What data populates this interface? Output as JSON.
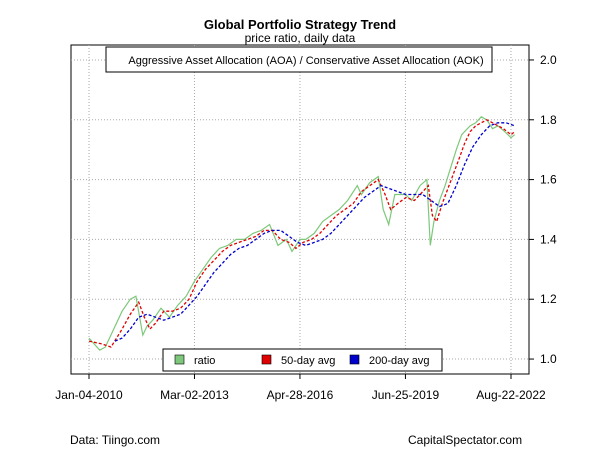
{
  "footer": {
    "source": "Data: Tiingo.com",
    "site": "CapitalSpectator.com"
  },
  "chart_data": {
    "type": "line",
    "title": "Global Portfolio Strategy Trend",
    "subtitle": "price ratio, daily data",
    "annotation": "Aggressive Asset Allocation (AOA) / Conservative Asset Allocation (AOK)",
    "xlabel": "",
    "ylabel": "",
    "x_ticks": [
      "Jan-04-2010",
      "Mar-02-2013",
      "Apr-28-2016",
      "Jun-25-2019",
      "Aug-22-2022"
    ],
    "y_ticks": [
      1.0,
      1.2,
      1.4,
      1.6,
      1.8,
      2.0
    ],
    "ylim": [
      0.95,
      2.05
    ],
    "grid": true,
    "legend_position": "bottom",
    "series": [
      {
        "name": "ratio",
        "color": "#7dc87a",
        "x": [
          "2010-01-04",
          "2010-05-01",
          "2010-07-01",
          "2010-10-01",
          "2011-01-01",
          "2011-04-01",
          "2011-06-01",
          "2011-08-15",
          "2011-10-01",
          "2011-12-01",
          "2012-03-01",
          "2012-06-01",
          "2012-09-01",
          "2012-12-01",
          "2013-03-01",
          "2013-06-01",
          "2013-09-01",
          "2013-12-01",
          "2014-03-01",
          "2014-06-01",
          "2014-09-01",
          "2014-12-01",
          "2015-03-01",
          "2015-06-01",
          "2015-09-01",
          "2015-12-01",
          "2016-02-01",
          "2016-04-28",
          "2016-07-01",
          "2016-10-01",
          "2017-01-01",
          "2017-04-01",
          "2017-07-01",
          "2017-10-01",
          "2018-01-15",
          "2018-03-01",
          "2018-06-01",
          "2018-09-01",
          "2018-10-25",
          "2018-12-24",
          "2019-03-01",
          "2019-06-25",
          "2019-09-01",
          "2019-12-01",
          "2020-02-15",
          "2020-03-23",
          "2020-05-01",
          "2020-07-01",
          "2020-09-01",
          "2020-11-01",
          "2021-01-01",
          "2021-03-01",
          "2021-06-01",
          "2021-08-01",
          "2021-10-01",
          "2021-12-01",
          "2022-02-01",
          "2022-04-01",
          "2022-06-15",
          "2022-08-22",
          "2022-10-01"
        ],
        "values": [
          1.07,
          1.03,
          1.04,
          1.1,
          1.16,
          1.2,
          1.21,
          1.08,
          1.11,
          1.13,
          1.17,
          1.14,
          1.18,
          1.21,
          1.26,
          1.3,
          1.34,
          1.37,
          1.38,
          1.4,
          1.4,
          1.42,
          1.43,
          1.45,
          1.38,
          1.4,
          1.36,
          1.4,
          1.4,
          1.42,
          1.46,
          1.48,
          1.5,
          1.53,
          1.58,
          1.55,
          1.59,
          1.61,
          1.5,
          1.45,
          1.55,
          1.55,
          1.53,
          1.58,
          1.6,
          1.38,
          1.46,
          1.53,
          1.58,
          1.64,
          1.7,
          1.75,
          1.78,
          1.79,
          1.81,
          1.8,
          1.77,
          1.78,
          1.76,
          1.74,
          1.75
        ]
      },
      {
        "name": "50-day avg",
        "color": "#e00000",
        "x": [
          "2010-01-04",
          "2010-06-01",
          "2010-09-01",
          "2011-01-01",
          "2011-04-01",
          "2011-07-01",
          "2011-09-01",
          "2011-11-01",
          "2012-01-01",
          "2012-04-01",
          "2012-07-01",
          "2012-10-01",
          "2013-01-01",
          "2013-04-01",
          "2013-07-01",
          "2013-10-01",
          "2014-01-01",
          "2014-04-01",
          "2014-07-01",
          "2014-10-01",
          "2015-01-01",
          "2015-04-01",
          "2015-07-01",
          "2015-10-01",
          "2016-01-01",
          "2016-03-15",
          "2016-06-01",
          "2016-09-01",
          "2016-12-01",
          "2017-03-01",
          "2017-06-01",
          "2017-09-01",
          "2017-12-01",
          "2018-03-01",
          "2018-06-01",
          "2018-09-01",
          "2018-11-15",
          "2019-01-15",
          "2019-04-01",
          "2019-07-01",
          "2019-10-01",
          "2020-01-01",
          "2020-03-01",
          "2020-04-15",
          "2020-06-01",
          "2020-08-01",
          "2020-10-01",
          "2020-12-01",
          "2021-02-01",
          "2021-04-01",
          "2021-06-01",
          "2021-08-01",
          "2021-10-01",
          "2021-12-01",
          "2022-02-01",
          "2022-04-01",
          "2022-06-01",
          "2022-08-22",
          "2022-10-01"
        ],
        "values": [
          1.06,
          1.05,
          1.04,
          1.1,
          1.15,
          1.19,
          1.14,
          1.1,
          1.12,
          1.16,
          1.16,
          1.17,
          1.2,
          1.26,
          1.3,
          1.33,
          1.36,
          1.38,
          1.39,
          1.4,
          1.41,
          1.43,
          1.43,
          1.4,
          1.39,
          1.37,
          1.39,
          1.4,
          1.42,
          1.45,
          1.48,
          1.5,
          1.52,
          1.56,
          1.58,
          1.6,
          1.55,
          1.5,
          1.52,
          1.54,
          1.53,
          1.56,
          1.58,
          1.48,
          1.46,
          1.52,
          1.57,
          1.62,
          1.67,
          1.72,
          1.76,
          1.78,
          1.79,
          1.8,
          1.79,
          1.78,
          1.77,
          1.75,
          1.76
        ]
      },
      {
        "name": "200-day avg",
        "color": "#0000cc",
        "x": [
          "2010-10-15",
          "2011-01-01",
          "2011-04-01",
          "2011-07-01",
          "2011-10-01",
          "2012-01-01",
          "2012-04-01",
          "2012-07-01",
          "2012-10-01",
          "2013-01-01",
          "2013-04-01",
          "2013-07-01",
          "2013-10-01",
          "2014-01-01",
          "2014-04-01",
          "2014-07-01",
          "2014-10-01",
          "2015-01-01",
          "2015-04-01",
          "2015-07-01",
          "2015-10-01",
          "2016-01-01",
          "2016-04-01",
          "2016-07-01",
          "2016-10-01",
          "2017-01-01",
          "2017-04-01",
          "2017-07-01",
          "2017-10-01",
          "2018-01-01",
          "2018-04-01",
          "2018-07-01",
          "2018-10-01",
          "2019-01-01",
          "2019-04-01",
          "2019-07-01",
          "2019-10-01",
          "2020-01-01",
          "2020-04-01",
          "2020-07-01",
          "2020-10-01",
          "2021-01-01",
          "2021-04-01",
          "2021-07-01",
          "2021-10-01",
          "2022-01-01",
          "2022-04-01",
          "2022-07-01",
          "2022-10-01"
        ],
        "values": [
          1.06,
          1.07,
          1.1,
          1.14,
          1.15,
          1.14,
          1.13,
          1.14,
          1.15,
          1.18,
          1.21,
          1.25,
          1.29,
          1.32,
          1.35,
          1.37,
          1.38,
          1.4,
          1.42,
          1.43,
          1.43,
          1.41,
          1.39,
          1.38,
          1.39,
          1.4,
          1.42,
          1.45,
          1.48,
          1.51,
          1.54,
          1.56,
          1.58,
          1.57,
          1.56,
          1.55,
          1.55,
          1.55,
          1.53,
          1.51,
          1.52,
          1.58,
          1.65,
          1.71,
          1.75,
          1.78,
          1.79,
          1.79,
          1.78
        ]
      }
    ]
  }
}
